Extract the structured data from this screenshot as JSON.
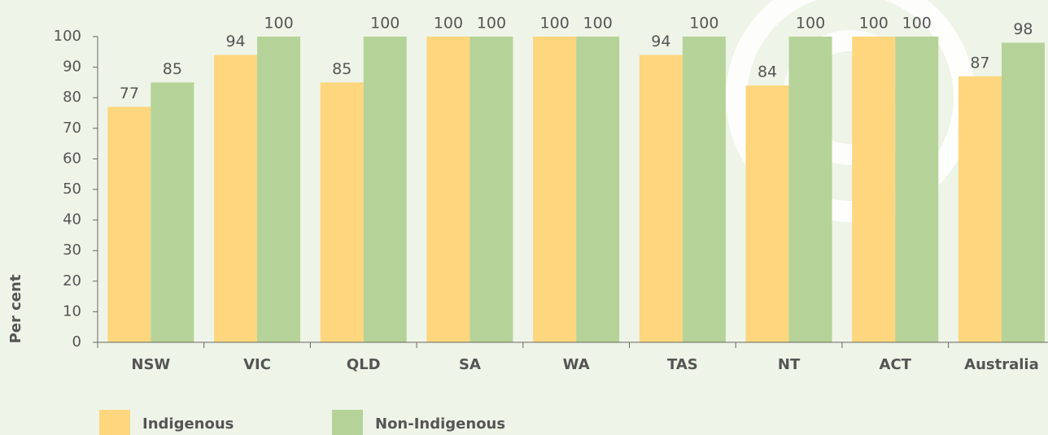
{
  "chart_data": {
    "type": "bar",
    "y_label": "Per cent",
    "categories": [
      "NSW",
      "VIC",
      "QLD",
      "SA",
      "WA",
      "TAS",
      "NT",
      "ACT",
      "Australia"
    ],
    "series": [
      {
        "name": "Indigenous",
        "color": "#fdd67d",
        "values": [
          77,
          94,
          85,
          100,
          100,
          94,
          84,
          100,
          87
        ]
      },
      {
        "name": "Non-Indigenous",
        "color": "#b5d398",
        "values": [
          85,
          100,
          100,
          100,
          100,
          100,
          100,
          100,
          98
        ]
      }
    ],
    "ylim": [
      0,
      100
    ],
    "yticks": [
      0,
      10,
      20,
      30,
      40,
      50,
      60,
      70,
      80,
      90,
      100
    ],
    "legend": "bottom-left",
    "value_labels_shown": true
  }
}
